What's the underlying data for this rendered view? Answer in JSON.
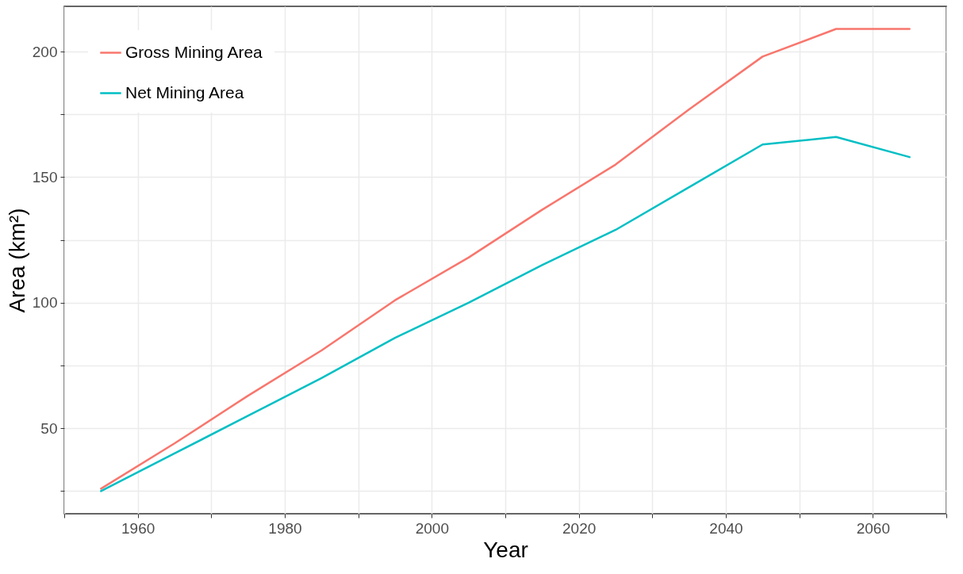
{
  "chart_data": {
    "type": "line",
    "xlabel": "Year",
    "ylabel": "Area (km²)",
    "x": [
      1955,
      1965,
      1975,
      1985,
      1995,
      2005,
      2015,
      2025,
      2035,
      2045,
      2055,
      2065
    ],
    "series": [
      {
        "name": "Gross Mining Area",
        "color": "#f8766d",
        "values": [
          26,
          44,
          63,
          81,
          101,
          118,
          137,
          155,
          177,
          198,
          209,
          209
        ]
      },
      {
        "name": "Net Mining Area",
        "color": "#00bfc4",
        "values": [
          25,
          40,
          55,
          70,
          86,
          100,
          115,
          129,
          146,
          163,
          166,
          158
        ]
      }
    ],
    "xlim": [
      1950,
      2070
    ],
    "xticks": [
      {
        "value": 1950,
        "label": null
      },
      1960,
      {
        "value": 1970,
        "label": null
      },
      1980,
      {
        "value": 1990,
        "label": null
      },
      2000,
      {
        "value": 2010,
        "label": null
      },
      2020,
      {
        "value": 2030,
        "label": null
      },
      2040,
      {
        "value": 2050,
        "label": null
      },
      2060,
      {
        "value": 2070,
        "label": null
      }
    ],
    "ylim": [
      16,
      218
    ],
    "yticks": [
      {
        "value": 25,
        "label": null
      },
      50,
      {
        "value": 75,
        "label": null
      },
      100,
      {
        "value": 125,
        "label": null
      },
      150,
      {
        "value": 175,
        "label": null
      },
      200
    ],
    "grid": true,
    "legend": "top left",
    "line_style": "solid"
  }
}
